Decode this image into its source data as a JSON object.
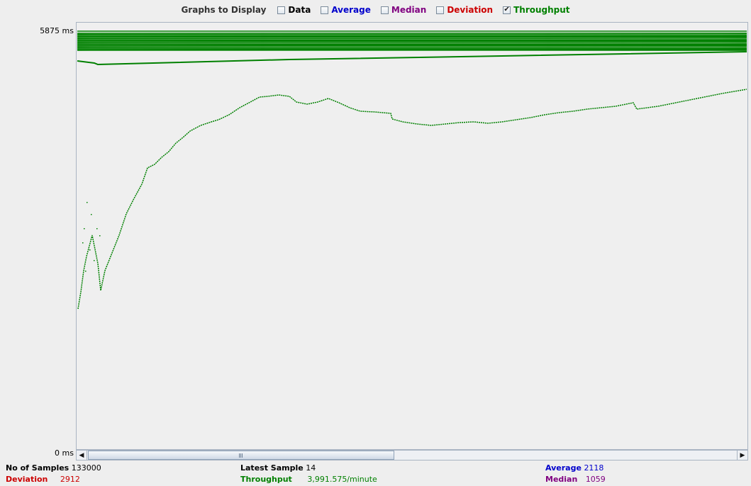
{
  "toolbar": {
    "title": "Graphs to Display",
    "options": [
      {
        "label": "Data",
        "color": "#000000",
        "checked": false
      },
      {
        "label": "Average",
        "color": "#0000cc",
        "checked": false
      },
      {
        "label": "Median",
        "color": "#800080",
        "checked": false
      },
      {
        "label": "Deviation",
        "color": "#cc0000",
        "checked": false
      },
      {
        "label": "Throughput",
        "color": "#008000",
        "checked": true
      }
    ]
  },
  "axis": {
    "y_max_label": "5875  ms",
    "y_min_label": "0  ms"
  },
  "scrollbar": {
    "left_icon": "arrow-left-icon",
    "right_icon": "arrow-right-icon",
    "position_fraction": 0.0,
    "visible_fraction": 0.47
  },
  "stats": {
    "samples": {
      "label": "No of Samples",
      "value": "133000",
      "label_color": "#000000",
      "value_color": "#000000"
    },
    "latest": {
      "label": "Latest Sample",
      "value": "14",
      "label_color": "#000000",
      "value_color": "#000000"
    },
    "average": {
      "label": "Average",
      "value": "2118",
      "label_color": "#0000cc",
      "value_color": "#0000cc"
    },
    "deviation": {
      "label": "Deviation",
      "value": "2912",
      "label_color": "#cc0000",
      "value_color": "#cc0000"
    },
    "throughput": {
      "label": "Throughput",
      "value": "3,991.575/minute",
      "label_color": "#008000",
      "value_color": "#008000"
    },
    "median": {
      "label": "Median",
      "value": "1059",
      "label_color": "#800080",
      "value_color": "#800080"
    }
  },
  "colors": {
    "throughput_series": "#008000"
  }
}
